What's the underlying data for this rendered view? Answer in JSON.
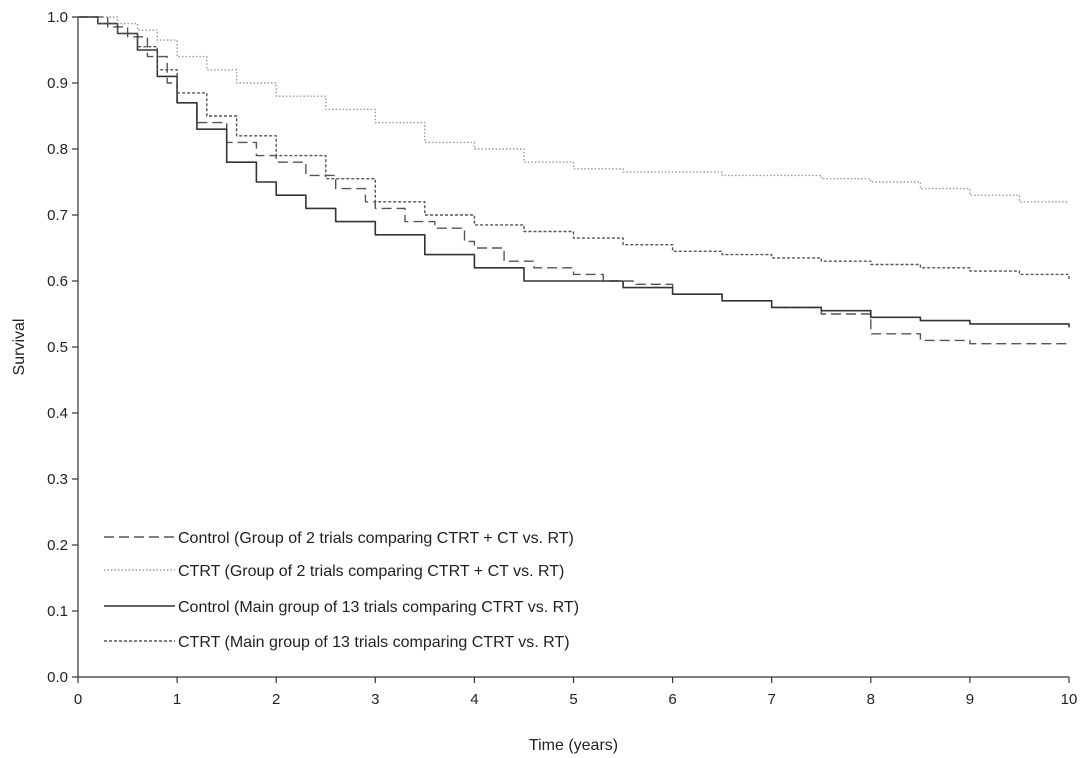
{
  "chart_data": {
    "type": "line",
    "title": "",
    "xlabel": "Time (years)",
    "ylabel": "Survival",
    "xlim": [
      0,
      10
    ],
    "ylim": [
      0.0,
      1.0
    ],
    "x_ticks": [
      "0",
      "1",
      "2",
      "3",
      "4",
      "5",
      "6",
      "7",
      "8",
      "9",
      "10"
    ],
    "y_ticks": [
      "0.0",
      "0.1",
      "0.2",
      "0.3",
      "0.4",
      "0.5",
      "0.6",
      "0.7",
      "0.8",
      "0.9",
      "1.0"
    ],
    "grid": false,
    "legend_position": "bottom-left",
    "series": [
      {
        "name": "Control (Group of 2 trials comparing CTRT + CT vs. RT)",
        "style": "dashed",
        "color": "#555555",
        "x": [
          0,
          0.3,
          0.5,
          0.7,
          0.9,
          1.0,
          1.2,
          1.5,
          1.8,
          2.0,
          2.3,
          2.6,
          2.9,
          3.0,
          3.3,
          3.6,
          3.9,
          4.0,
          4.3,
          4.6,
          5.0,
          5.3,
          5.6,
          6.0,
          6.5,
          7.0,
          7.5,
          8.0,
          8.5,
          9.0,
          9.5,
          10.0
        ],
        "y": [
          1.0,
          0.985,
          0.97,
          0.94,
          0.9,
          0.87,
          0.84,
          0.81,
          0.79,
          0.78,
          0.76,
          0.74,
          0.72,
          0.71,
          0.69,
          0.68,
          0.66,
          0.65,
          0.63,
          0.62,
          0.61,
          0.6,
          0.595,
          0.58,
          0.57,
          0.56,
          0.55,
          0.52,
          0.51,
          0.505,
          0.505,
          0.505
        ]
      },
      {
        "name": "CTRT (Group of 2 trials comparing CTRT + CT vs. RT)",
        "style": "dotted",
        "color": "#9a9a9a",
        "x": [
          0,
          0.2,
          0.4,
          0.6,
          0.8,
          1.0,
          1.3,
          1.6,
          2.0,
          2.5,
          3.0,
          3.5,
          4.0,
          4.5,
          5.0,
          5.5,
          6.0,
          6.5,
          7.0,
          7.5,
          8.0,
          8.5,
          9.0,
          9.5,
          10.0
        ],
        "y": [
          1.0,
          1.0,
          0.99,
          0.98,
          0.965,
          0.94,
          0.92,
          0.9,
          0.88,
          0.86,
          0.84,
          0.81,
          0.8,
          0.78,
          0.77,
          0.765,
          0.765,
          0.76,
          0.76,
          0.755,
          0.75,
          0.74,
          0.73,
          0.72,
          0.72
        ]
      },
      {
        "name": "Control (Main group of 13 trials comparing CTRT vs. RT)",
        "style": "solid",
        "color": "#333333",
        "x": [
          0,
          0.2,
          0.4,
          0.6,
          0.8,
          1.0,
          1.2,
          1.5,
          1.8,
          2.0,
          2.3,
          2.6,
          3.0,
          3.5,
          4.0,
          4.5,
          5.0,
          5.5,
          6.0,
          6.5,
          7.0,
          7.5,
          8.0,
          8.5,
          9.0,
          9.5,
          10.0
        ],
        "y": [
          1.0,
          0.99,
          0.975,
          0.95,
          0.91,
          0.87,
          0.83,
          0.78,
          0.75,
          0.73,
          0.71,
          0.69,
          0.67,
          0.64,
          0.62,
          0.6,
          0.6,
          0.59,
          0.58,
          0.57,
          0.56,
          0.555,
          0.545,
          0.54,
          0.535,
          0.535,
          0.53
        ]
      },
      {
        "name": "CTRT  (Main group of 13 trials comparing CTRT vs. RT)",
        "style": "short-dashed",
        "color": "#555555",
        "x": [
          0,
          0.2,
          0.4,
          0.6,
          0.8,
          1.0,
          1.3,
          1.6,
          2.0,
          2.5,
          3.0,
          3.5,
          4.0,
          4.5,
          5.0,
          5.5,
          6.0,
          6.5,
          7.0,
          7.5,
          8.0,
          8.5,
          9.0,
          9.5,
          10.0
        ],
        "y": [
          1.0,
          0.99,
          0.975,
          0.955,
          0.92,
          0.885,
          0.85,
          0.82,
          0.79,
          0.755,
          0.72,
          0.7,
          0.685,
          0.675,
          0.665,
          0.655,
          0.645,
          0.64,
          0.635,
          0.63,
          0.625,
          0.62,
          0.615,
          0.61,
          0.6
        ]
      }
    ]
  }
}
